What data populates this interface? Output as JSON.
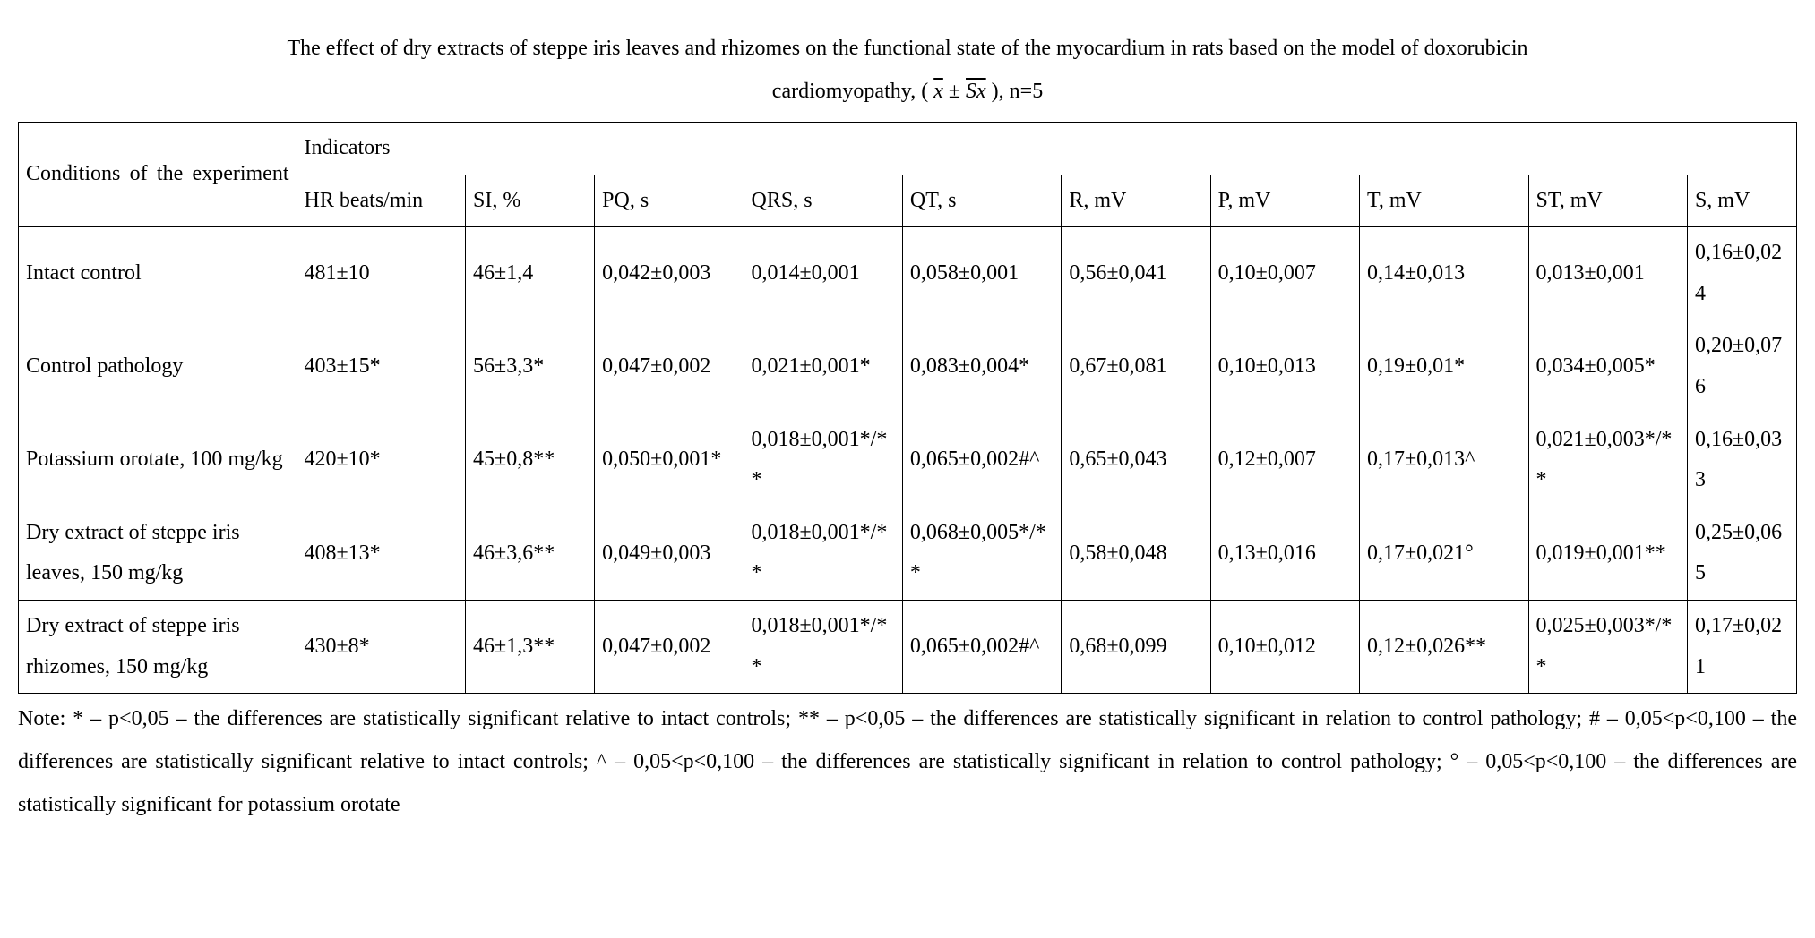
{
  "title_line1": "The effect of dry extracts of steppe iris leaves and rhizomes on the functional state of the myocardium in rats based on the model of doxorubicin",
  "title_line2_a": "cardiomyopathy, ( ",
  "title_line2_x": "x",
  "title_line2_pm": " ± ",
  "title_line2_sx": "Sx",
  "title_line2_b": " ), n=5",
  "header": {
    "conditions": "Conditions of the experiment",
    "indicators": "Indicators",
    "cols": [
      "HR beats/min",
      "SI, %",
      "PQ, s",
      "QRS, s",
      "QT, s",
      "R, mV",
      "P, mV",
      "T, mV",
      "ST, mV",
      "S, mV"
    ]
  },
  "rows": [
    {
      "label": "Intact control",
      "cells": [
        "481±10",
        "46±1,4",
        "0,042±0,003",
        "0,014±0,001",
        "0,058±0,001",
        "0,56±0,041",
        "0,10±0,007",
        "0,14±0,013",
        "0,013±0,001",
        "0,16±0,024"
      ]
    },
    {
      "label": "Control pathology",
      "cells": [
        "403±15*",
        "56±3,3*",
        "0,047±0,002",
        "0,021±0,001*",
        "0,083±0,004*",
        "0,67±0,081",
        "0,10±0,013",
        "0,19±0,01*",
        "0,034±0,005*",
        "0,20±0,076"
      ]
    },
    {
      "label": "Potassium orotate, 100 mg/kg",
      "cells": [
        "420±10*",
        "45±0,8**",
        "0,050±0,001*",
        "0,018±0,001*/**",
        "0,065±0,002#^",
        "0,65±0,043",
        "0,12±0,007",
        "0,17±0,013^",
        "0,021±0,003*/**",
        "0,16±0,033"
      ]
    },
    {
      "label": "Dry extract of steppe iris leaves, 150 mg/kg",
      "cells": [
        "408±13*",
        "46±3,6**",
        "0,049±0,003",
        "0,018±0,001*/**",
        "0,068±0,005*/**",
        "0,58±0,048",
        "0,13±0,016",
        "0,17±0,021°",
        "0,019±0,001**",
        "0,25±0,065"
      ]
    },
    {
      "label": "Dry extract of steppe iris rhizomes, 150 mg/kg",
      "cells": [
        "430±8*",
        "46±1,3**",
        "0,047±0,002",
        "0,018±0,001*/**",
        "0,065±0,002#^",
        "0,68±0,099",
        "0,10±0,012",
        "0,12±0,026**",
        "0,025±0,003*/**",
        "0,17±0,021"
      ]
    }
  ],
  "note": "Note: * – p<0,05 – the differences are statistically significant relative to intact controls; ** – p<0,05 – the differences are statistically significant in relation to control pathology; # – 0,05<p<0,100 – the differences are statistically significant relative to intact controls; ^ – 0,05<p<0,100 – the differences are statistically significant in relation to control pathology; ° – 0,05<p<0,100 – the differences are statistically significant for potassium orotate"
}
